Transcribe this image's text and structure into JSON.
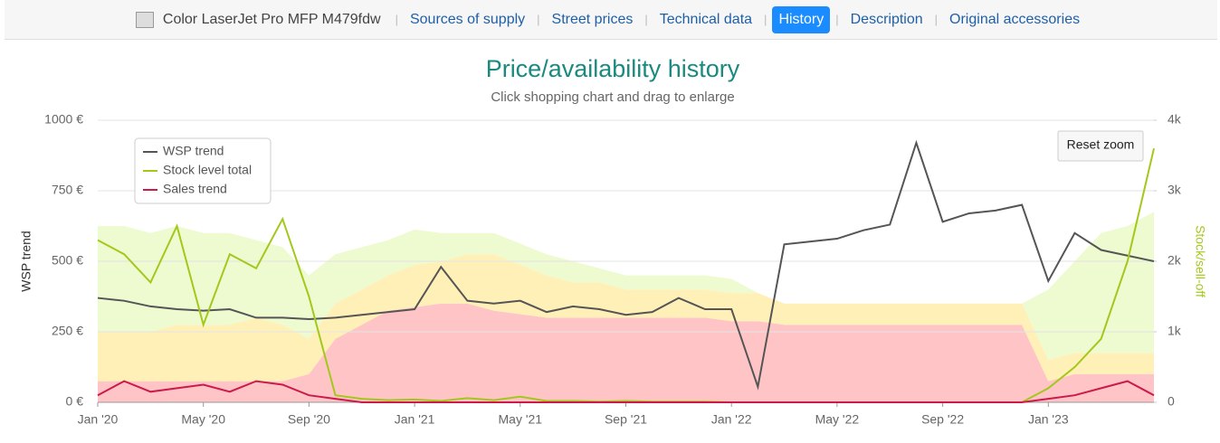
{
  "header": {
    "product": "Color LaserJet Pro MFP M479fdw",
    "tabs": [
      "Sources of supply",
      "Street prices",
      "Technical data",
      "History",
      "Description",
      "Original accessories"
    ],
    "active_tab": 3
  },
  "reset_button": "Reset zoom",
  "chart_data": {
    "type": "line",
    "title": "Price/availability history",
    "subtitle": "Click shopping chart and drag to enlarge",
    "y_label": "WSP trend",
    "y2_label": "Stock/sell-off",
    "legend": "upper left",
    "grid": true,
    "x": [
      "2020-01",
      "2020-02",
      "2020-03",
      "2020-04",
      "2020-05",
      "2020-06",
      "2020-07",
      "2020-08",
      "2020-09",
      "2020-10",
      "2020-11",
      "2020-12",
      "2021-01",
      "2021-02",
      "2021-03",
      "2021-04",
      "2021-05",
      "2021-06",
      "2021-07",
      "2021-08",
      "2021-09",
      "2021-10",
      "2021-11",
      "2021-12",
      "2022-01",
      "2022-02",
      "2022-03",
      "2022-04",
      "2022-05",
      "2022-06",
      "2022-07",
      "2022-08",
      "2022-09",
      "2022-10",
      "2022-11",
      "2022-12",
      "2023-01",
      "2023-02",
      "2023-03",
      "2023-04",
      "2023-05"
    ],
    "xlim": [
      "2020-01",
      "2023-05"
    ],
    "xticks": [
      {
        "value": "2020-01",
        "label": "Jan '20"
      },
      {
        "value": "2020-05",
        "label": "May '20"
      },
      {
        "value": "2020-09",
        "label": "Sep '20"
      },
      {
        "value": "2021-01",
        "label": "Jan '21"
      },
      {
        "value": "2021-05",
        "label": "May '21"
      },
      {
        "value": "2021-09",
        "label": "Sep '21"
      },
      {
        "value": "2022-01",
        "label": "Jan '22"
      },
      {
        "value": "2022-05",
        "label": "May '22"
      },
      {
        "value": "2022-09",
        "label": "Sep '22"
      },
      {
        "value": "2023-01",
        "label": "Jan '23"
      }
    ],
    "ylim": [
      0,
      1000
    ],
    "yticks": [
      {
        "value": 0,
        "label": "0 €"
      },
      {
        "value": 250,
        "label": "250 €"
      },
      {
        "value": 500,
        "label": "500 €"
      },
      {
        "value": 750,
        "label": "750 €"
      },
      {
        "value": 1000,
        "label": "1000 €"
      }
    ],
    "y2lim": [
      0,
      4000
    ],
    "y2ticks": [
      0,
      {
        "value": 1000,
        "label": "1k"
      },
      {
        "value": 2000,
        "label": "2k"
      },
      {
        "value": 3000,
        "label": "3k"
      },
      {
        "value": 4000,
        "label": "4k"
      }
    ],
    "areas": [
      {
        "color": "#ffc4c6",
        "values": [
          300,
          300,
          300,
          300,
          300,
          300,
          300,
          300,
          400,
          900,
          1100,
          1300,
          1350,
          1400,
          1400,
          1300,
          1250,
          1200,
          1200,
          1200,
          1200,
          1200,
          1200,
          1200,
          1150,
          1150,
          1100,
          1100,
          1100,
          1100,
          1100,
          1100,
          1100,
          1100,
          1100,
          1100,
          300,
          400,
          400,
          400,
          400
        ]
      },
      {
        "color": "#fff0b8",
        "values": [
          700,
          700,
          700,
          800,
          800,
          800,
          900,
          800,
          500,
          500,
          500,
          500,
          600,
          600,
          700,
          800,
          700,
          600,
          500,
          500,
          400,
          400,
          400,
          400,
          400,
          400,
          300,
          300,
          300,
          300,
          300,
          300,
          300,
          300,
          300,
          300,
          300,
          300,
          300,
          300,
          300
        ]
      },
      {
        "color": "#eefacf",
        "values": [
          1500,
          1500,
          1400,
          1400,
          1300,
          1300,
          1100,
          1100,
          900,
          700,
          600,
          500,
          500,
          400,
          300,
          300,
          300,
          300,
          300,
          200,
          200,
          200,
          200,
          200,
          200,
          0,
          0,
          0,
          0,
          0,
          0,
          0,
          0,
          0,
          0,
          0,
          1000,
          1300,
          1700,
          1800,
          2000
        ]
      }
    ],
    "series": [
      {
        "name": "WSP trend",
        "color": "#555555",
        "values": [
          370,
          360,
          340,
          330,
          325,
          330,
          300,
          300,
          295,
          300,
          310,
          320,
          330,
          480,
          360,
          350,
          360,
          320,
          340,
          330,
          310,
          320,
          370,
          330,
          330,
          55,
          560,
          570,
          580,
          610,
          630,
          920,
          640,
          670,
          680,
          700,
          430,
          600,
          540,
          520,
          500
        ]
      },
      {
        "name": "Stock level total",
        "color": "#a3c81c",
        "axis": "y2",
        "values": [
          2300,
          2100,
          1700,
          2500,
          1100,
          2100,
          1900,
          2600,
          1500,
          100,
          50,
          30,
          40,
          20,
          60,
          30,
          80,
          20,
          20,
          10,
          20,
          10,
          10,
          10,
          0,
          0,
          0,
          0,
          0,
          0,
          0,
          0,
          0,
          0,
          0,
          0,
          200,
          500,
          900,
          2000,
          3600
        ]
      },
      {
        "name": "Sales trend",
        "color": "#cc1a4a",
        "axis": "y2",
        "values": [
          100,
          300,
          150,
          200,
          250,
          150,
          300,
          250,
          100,
          50,
          0,
          0,
          0,
          0,
          0,
          0,
          0,
          0,
          0,
          0,
          0,
          0,
          0,
          0,
          0,
          0,
          0,
          0,
          0,
          0,
          0,
          0,
          0,
          0,
          0,
          0,
          50,
          100,
          200,
          300,
          100
        ]
      }
    ]
  }
}
